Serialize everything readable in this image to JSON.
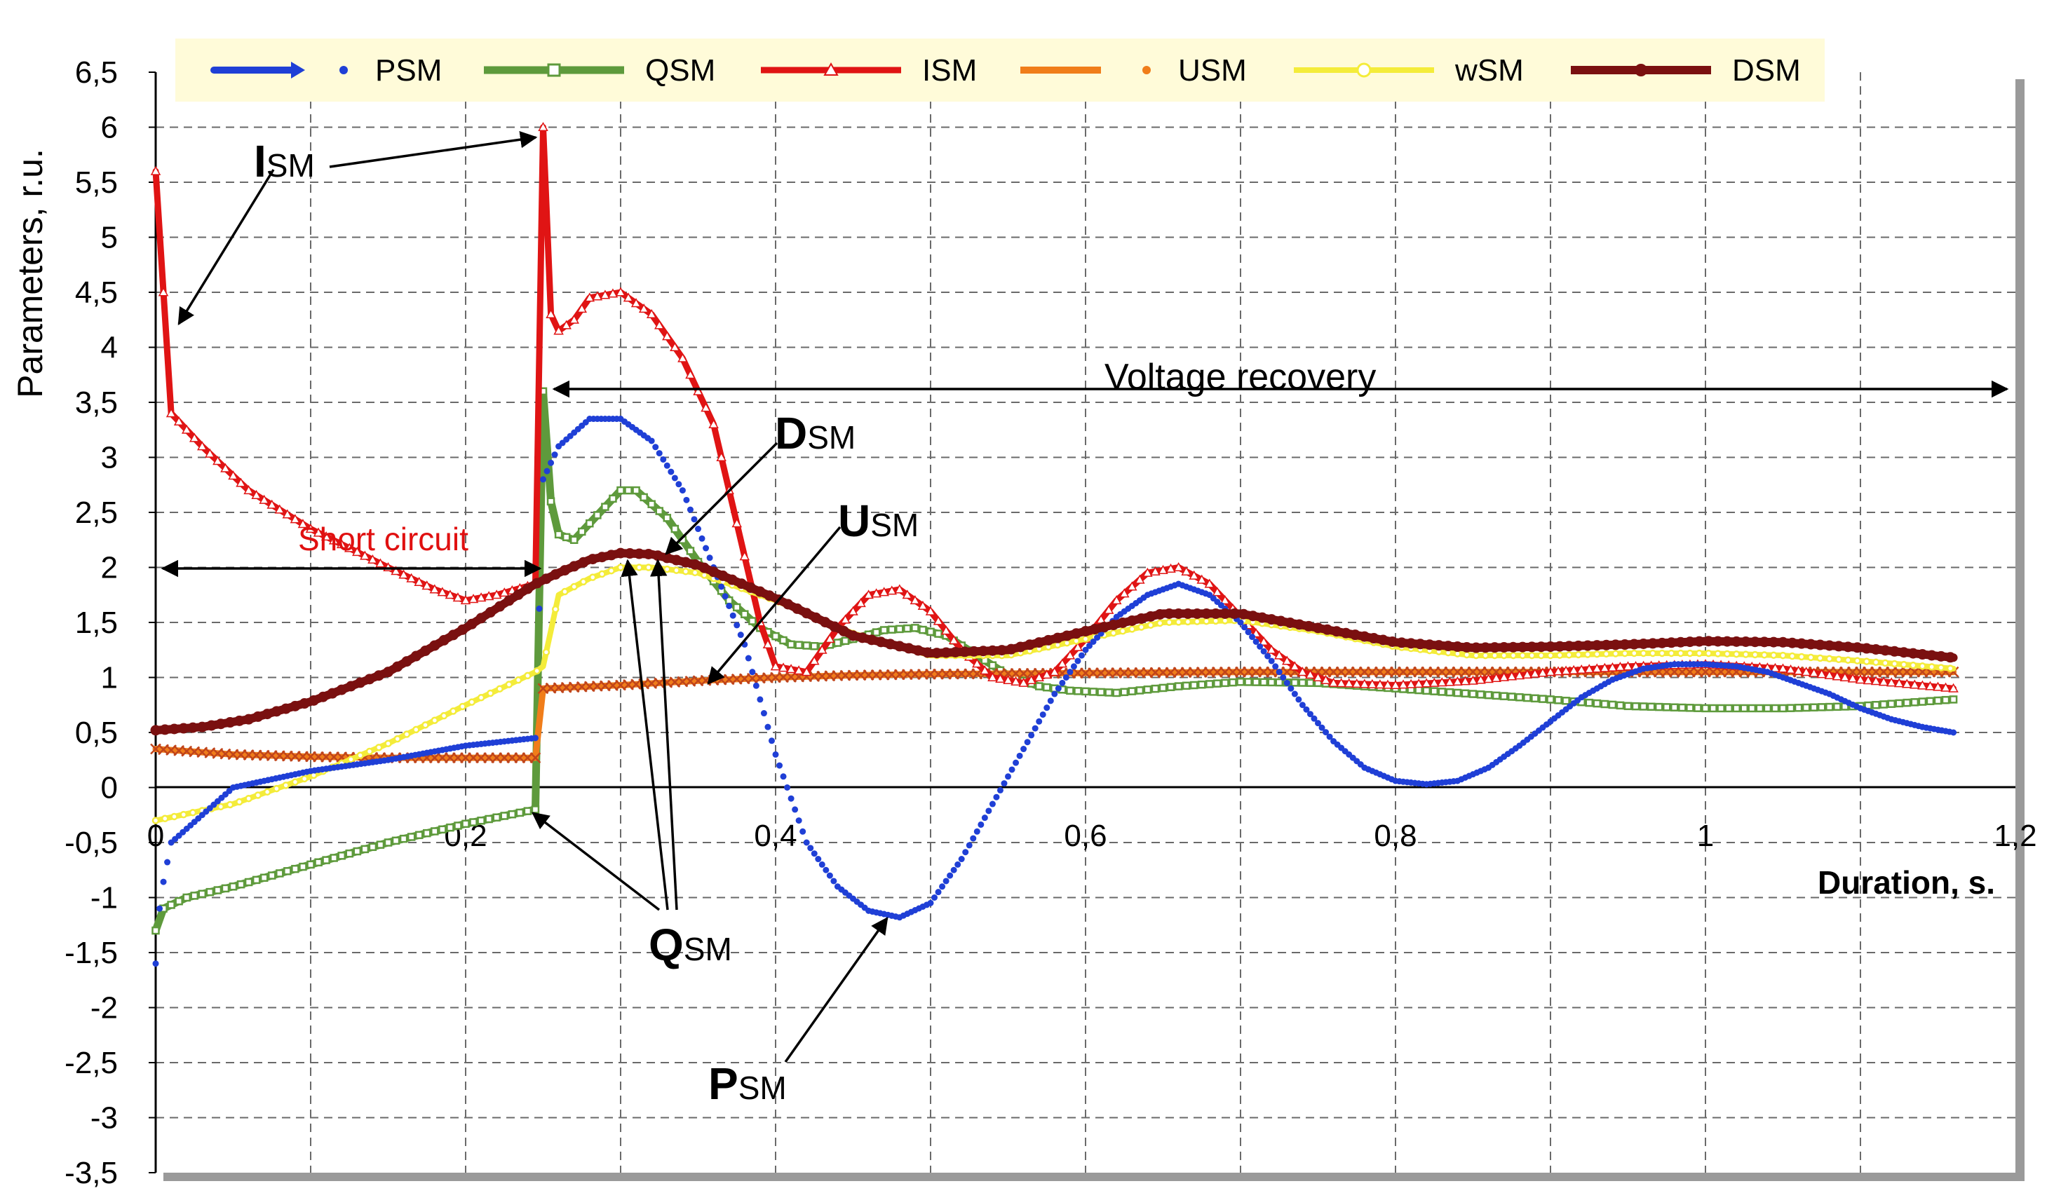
{
  "chart_data": {
    "type": "line",
    "ylabel": "Parameters, r.u.",
    "xlabel": "Duration, s.",
    "xlim": [
      0,
      1.2
    ],
    "ylim": [
      -3.5,
      6.5
    ],
    "x_ticks": [
      "0",
      "0,2",
      "0,4",
      "0,6",
      "0,8",
      "1",
      "1,2"
    ],
    "y_ticks": [
      "6,5",
      "6",
      "5,5",
      "5",
      "4,5",
      "4",
      "3,5",
      "3",
      "2,5",
      "2",
      "1,5",
      "1",
      "0,5",
      "0",
      "-0,5",
      "-1",
      "-1,5",
      "-2",
      "-2,5",
      "-3",
      "-3,5"
    ],
    "grid": true,
    "legend_position": "top",
    "colors": {
      "PSM": "#1f3fd6",
      "QSM": "#5e9a3c",
      "ISM": "#e01414",
      "USM": "#f07d1a",
      "wSM": "#f4ec3a",
      "DSM": "#7a1010"
    },
    "series": [
      {
        "name": "PSM",
        "points": [
          [
            0.0,
            -1.6
          ],
          [
            0.003,
            -1.0
          ],
          [
            0.01,
            -0.5
          ],
          [
            0.05,
            0.0
          ],
          [
            0.1,
            0.15
          ],
          [
            0.15,
            0.25
          ],
          [
            0.2,
            0.38
          ],
          [
            0.245,
            0.45
          ],
          [
            0.25,
            2.8
          ],
          [
            0.26,
            3.1
          ],
          [
            0.28,
            3.35
          ],
          [
            0.3,
            3.35
          ],
          [
            0.32,
            3.15
          ],
          [
            0.34,
            2.7
          ],
          [
            0.36,
            2.0
          ],
          [
            0.38,
            1.3
          ],
          [
            0.4,
            0.3
          ],
          [
            0.42,
            -0.5
          ],
          [
            0.44,
            -0.9
          ],
          [
            0.46,
            -1.12
          ],
          [
            0.48,
            -1.18
          ],
          [
            0.5,
            -1.05
          ],
          [
            0.52,
            -0.65
          ],
          [
            0.54,
            -0.15
          ],
          [
            0.56,
            0.35
          ],
          [
            0.58,
            0.85
          ],
          [
            0.6,
            1.25
          ],
          [
            0.62,
            1.55
          ],
          [
            0.64,
            1.75
          ],
          [
            0.66,
            1.85
          ],
          [
            0.68,
            1.75
          ],
          [
            0.7,
            1.5
          ],
          [
            0.72,
            1.15
          ],
          [
            0.74,
            0.75
          ],
          [
            0.76,
            0.42
          ],
          [
            0.78,
            0.18
          ],
          [
            0.8,
            0.06
          ],
          [
            0.82,
            0.03
          ],
          [
            0.84,
            0.06
          ],
          [
            0.86,
            0.18
          ],
          [
            0.88,
            0.38
          ],
          [
            0.9,
            0.6
          ],
          [
            0.92,
            0.82
          ],
          [
            0.94,
            0.98
          ],
          [
            0.96,
            1.08
          ],
          [
            0.98,
            1.12
          ],
          [
            1.0,
            1.12
          ],
          [
            1.02,
            1.1
          ],
          [
            1.04,
            1.05
          ],
          [
            1.06,
            0.95
          ],
          [
            1.08,
            0.85
          ],
          [
            1.1,
            0.72
          ],
          [
            1.12,
            0.62
          ],
          [
            1.14,
            0.55
          ],
          [
            1.16,
            0.5
          ]
        ]
      },
      {
        "name": "QSM",
        "points": [
          [
            0.0,
            -1.3
          ],
          [
            0.005,
            -1.1
          ],
          [
            0.02,
            -1.0
          ],
          [
            0.05,
            -0.9
          ],
          [
            0.1,
            -0.7
          ],
          [
            0.15,
            -0.5
          ],
          [
            0.2,
            -0.33
          ],
          [
            0.245,
            -0.2
          ],
          [
            0.25,
            3.6
          ],
          [
            0.255,
            2.6
          ],
          [
            0.26,
            2.3
          ],
          [
            0.27,
            2.25
          ],
          [
            0.28,
            2.4
          ],
          [
            0.3,
            2.7
          ],
          [
            0.31,
            2.7
          ],
          [
            0.33,
            2.45
          ],
          [
            0.35,
            2.05
          ],
          [
            0.37,
            1.7
          ],
          [
            0.39,
            1.45
          ],
          [
            0.41,
            1.3
          ],
          [
            0.43,
            1.28
          ],
          [
            0.45,
            1.35
          ],
          [
            0.47,
            1.43
          ],
          [
            0.49,
            1.45
          ],
          [
            0.51,
            1.38
          ],
          [
            0.53,
            1.2
          ],
          [
            0.55,
            1.02
          ],
          [
            0.57,
            0.92
          ],
          [
            0.59,
            0.88
          ],
          [
            0.62,
            0.86
          ],
          [
            0.66,
            0.92
          ],
          [
            0.7,
            0.96
          ],
          [
            0.75,
            0.95
          ],
          [
            0.8,
            0.9
          ],
          [
            0.85,
            0.85
          ],
          [
            0.9,
            0.8
          ],
          [
            0.95,
            0.74
          ],
          [
            1.0,
            0.72
          ],
          [
            1.05,
            0.72
          ],
          [
            1.1,
            0.74
          ],
          [
            1.16,
            0.8
          ]
        ]
      },
      {
        "name": "ISM",
        "points": [
          [
            0.0,
            5.6
          ],
          [
            0.005,
            4.5
          ],
          [
            0.01,
            3.4
          ],
          [
            0.03,
            3.1
          ],
          [
            0.06,
            2.7
          ],
          [
            0.1,
            2.35
          ],
          [
            0.15,
            2.0
          ],
          [
            0.18,
            1.8
          ],
          [
            0.2,
            1.7
          ],
          [
            0.22,
            1.75
          ],
          [
            0.245,
            1.85
          ],
          [
            0.25,
            6.0
          ],
          [
            0.255,
            4.3
          ],
          [
            0.26,
            4.15
          ],
          [
            0.27,
            4.25
          ],
          [
            0.28,
            4.45
          ],
          [
            0.3,
            4.5
          ],
          [
            0.32,
            4.3
          ],
          [
            0.34,
            3.9
          ],
          [
            0.36,
            3.3
          ],
          [
            0.38,
            2.1
          ],
          [
            0.39,
            1.5
          ],
          [
            0.4,
            1.1
          ],
          [
            0.42,
            1.05
          ],
          [
            0.44,
            1.45
          ],
          [
            0.46,
            1.75
          ],
          [
            0.48,
            1.8
          ],
          [
            0.5,
            1.6
          ],
          [
            0.52,
            1.25
          ],
          [
            0.54,
            1.0
          ],
          [
            0.56,
            0.95
          ],
          [
            0.58,
            1.05
          ],
          [
            0.6,
            1.35
          ],
          [
            0.62,
            1.7
          ],
          [
            0.64,
            1.95
          ],
          [
            0.66,
            2.0
          ],
          [
            0.68,
            1.85
          ],
          [
            0.7,
            1.55
          ],
          [
            0.72,
            1.25
          ],
          [
            0.74,
            1.05
          ],
          [
            0.76,
            0.95
          ],
          [
            0.8,
            0.93
          ],
          [
            0.85,
            0.97
          ],
          [
            0.9,
            1.05
          ],
          [
            0.95,
            1.1
          ],
          [
            1.0,
            1.12
          ],
          [
            1.05,
            1.08
          ],
          [
            1.1,
            0.98
          ],
          [
            1.16,
            0.9
          ]
        ]
      },
      {
        "name": "USM",
        "points": [
          [
            0.0,
            0.35
          ],
          [
            0.05,
            0.3
          ],
          [
            0.1,
            0.28
          ],
          [
            0.15,
            0.27
          ],
          [
            0.2,
            0.27
          ],
          [
            0.245,
            0.27
          ],
          [
            0.25,
            0.9
          ],
          [
            0.3,
            0.93
          ],
          [
            0.35,
            0.97
          ],
          [
            0.4,
            1.0
          ],
          [
            0.45,
            1.02
          ],
          [
            0.5,
            1.03
          ],
          [
            0.6,
            1.04
          ],
          [
            0.7,
            1.05
          ],
          [
            0.8,
            1.05
          ],
          [
            0.9,
            1.05
          ],
          [
            1.0,
            1.05
          ],
          [
            1.1,
            1.05
          ],
          [
            1.16,
            1.05
          ]
        ]
      },
      {
        "name": "wSM",
        "points": [
          [
            0.0,
            -0.3
          ],
          [
            0.05,
            -0.15
          ],
          [
            0.1,
            0.1
          ],
          [
            0.15,
            0.4
          ],
          [
            0.2,
            0.75
          ],
          [
            0.245,
            1.05
          ],
          [
            0.25,
            1.1
          ],
          [
            0.26,
            1.75
          ],
          [
            0.28,
            1.9
          ],
          [
            0.3,
            2.0
          ],
          [
            0.32,
            2.0
          ],
          [
            0.35,
            1.95
          ],
          [
            0.4,
            1.7
          ],
          [
            0.45,
            1.4
          ],
          [
            0.5,
            1.2
          ],
          [
            0.55,
            1.2
          ],
          [
            0.6,
            1.35
          ],
          [
            0.65,
            1.5
          ],
          [
            0.7,
            1.52
          ],
          [
            0.75,
            1.42
          ],
          [
            0.8,
            1.28
          ],
          [
            0.85,
            1.2
          ],
          [
            0.9,
            1.2
          ],
          [
            0.95,
            1.22
          ],
          [
            1.0,
            1.22
          ],
          [
            1.05,
            1.2
          ],
          [
            1.1,
            1.15
          ],
          [
            1.16,
            1.08
          ]
        ]
      },
      {
        "name": "DSM",
        "points": [
          [
            0.0,
            0.52
          ],
          [
            0.03,
            0.55
          ],
          [
            0.06,
            0.62
          ],
          [
            0.1,
            0.78
          ],
          [
            0.15,
            1.05
          ],
          [
            0.2,
            1.45
          ],
          [
            0.245,
            1.85
          ],
          [
            0.26,
            1.95
          ],
          [
            0.28,
            2.07
          ],
          [
            0.3,
            2.13
          ],
          [
            0.32,
            2.12
          ],
          [
            0.35,
            2.02
          ],
          [
            0.4,
            1.72
          ],
          [
            0.45,
            1.38
          ],
          [
            0.5,
            1.22
          ],
          [
            0.55,
            1.25
          ],
          [
            0.6,
            1.42
          ],
          [
            0.65,
            1.58
          ],
          [
            0.7,
            1.58
          ],
          [
            0.75,
            1.45
          ],
          [
            0.8,
            1.32
          ],
          [
            0.85,
            1.27
          ],
          [
            0.9,
            1.28
          ],
          [
            0.95,
            1.3
          ],
          [
            1.0,
            1.33
          ],
          [
            1.05,
            1.32
          ],
          [
            1.1,
            1.27
          ],
          [
            1.16,
            1.18
          ]
        ]
      }
    ],
    "annotations": {
      "ism": {
        "main": "I",
        "sub": "SM"
      },
      "dsm": {
        "main": "D",
        "sub": "SM"
      },
      "usm": {
        "main": "U",
        "sub": "SM"
      },
      "qsm": {
        "main": "Q",
        "sub": "SM"
      },
      "psm": {
        "main": "P",
        "sub": "SM"
      },
      "short_circuit": "Short circuit",
      "voltage_recovery": "Voltage recovery"
    }
  }
}
